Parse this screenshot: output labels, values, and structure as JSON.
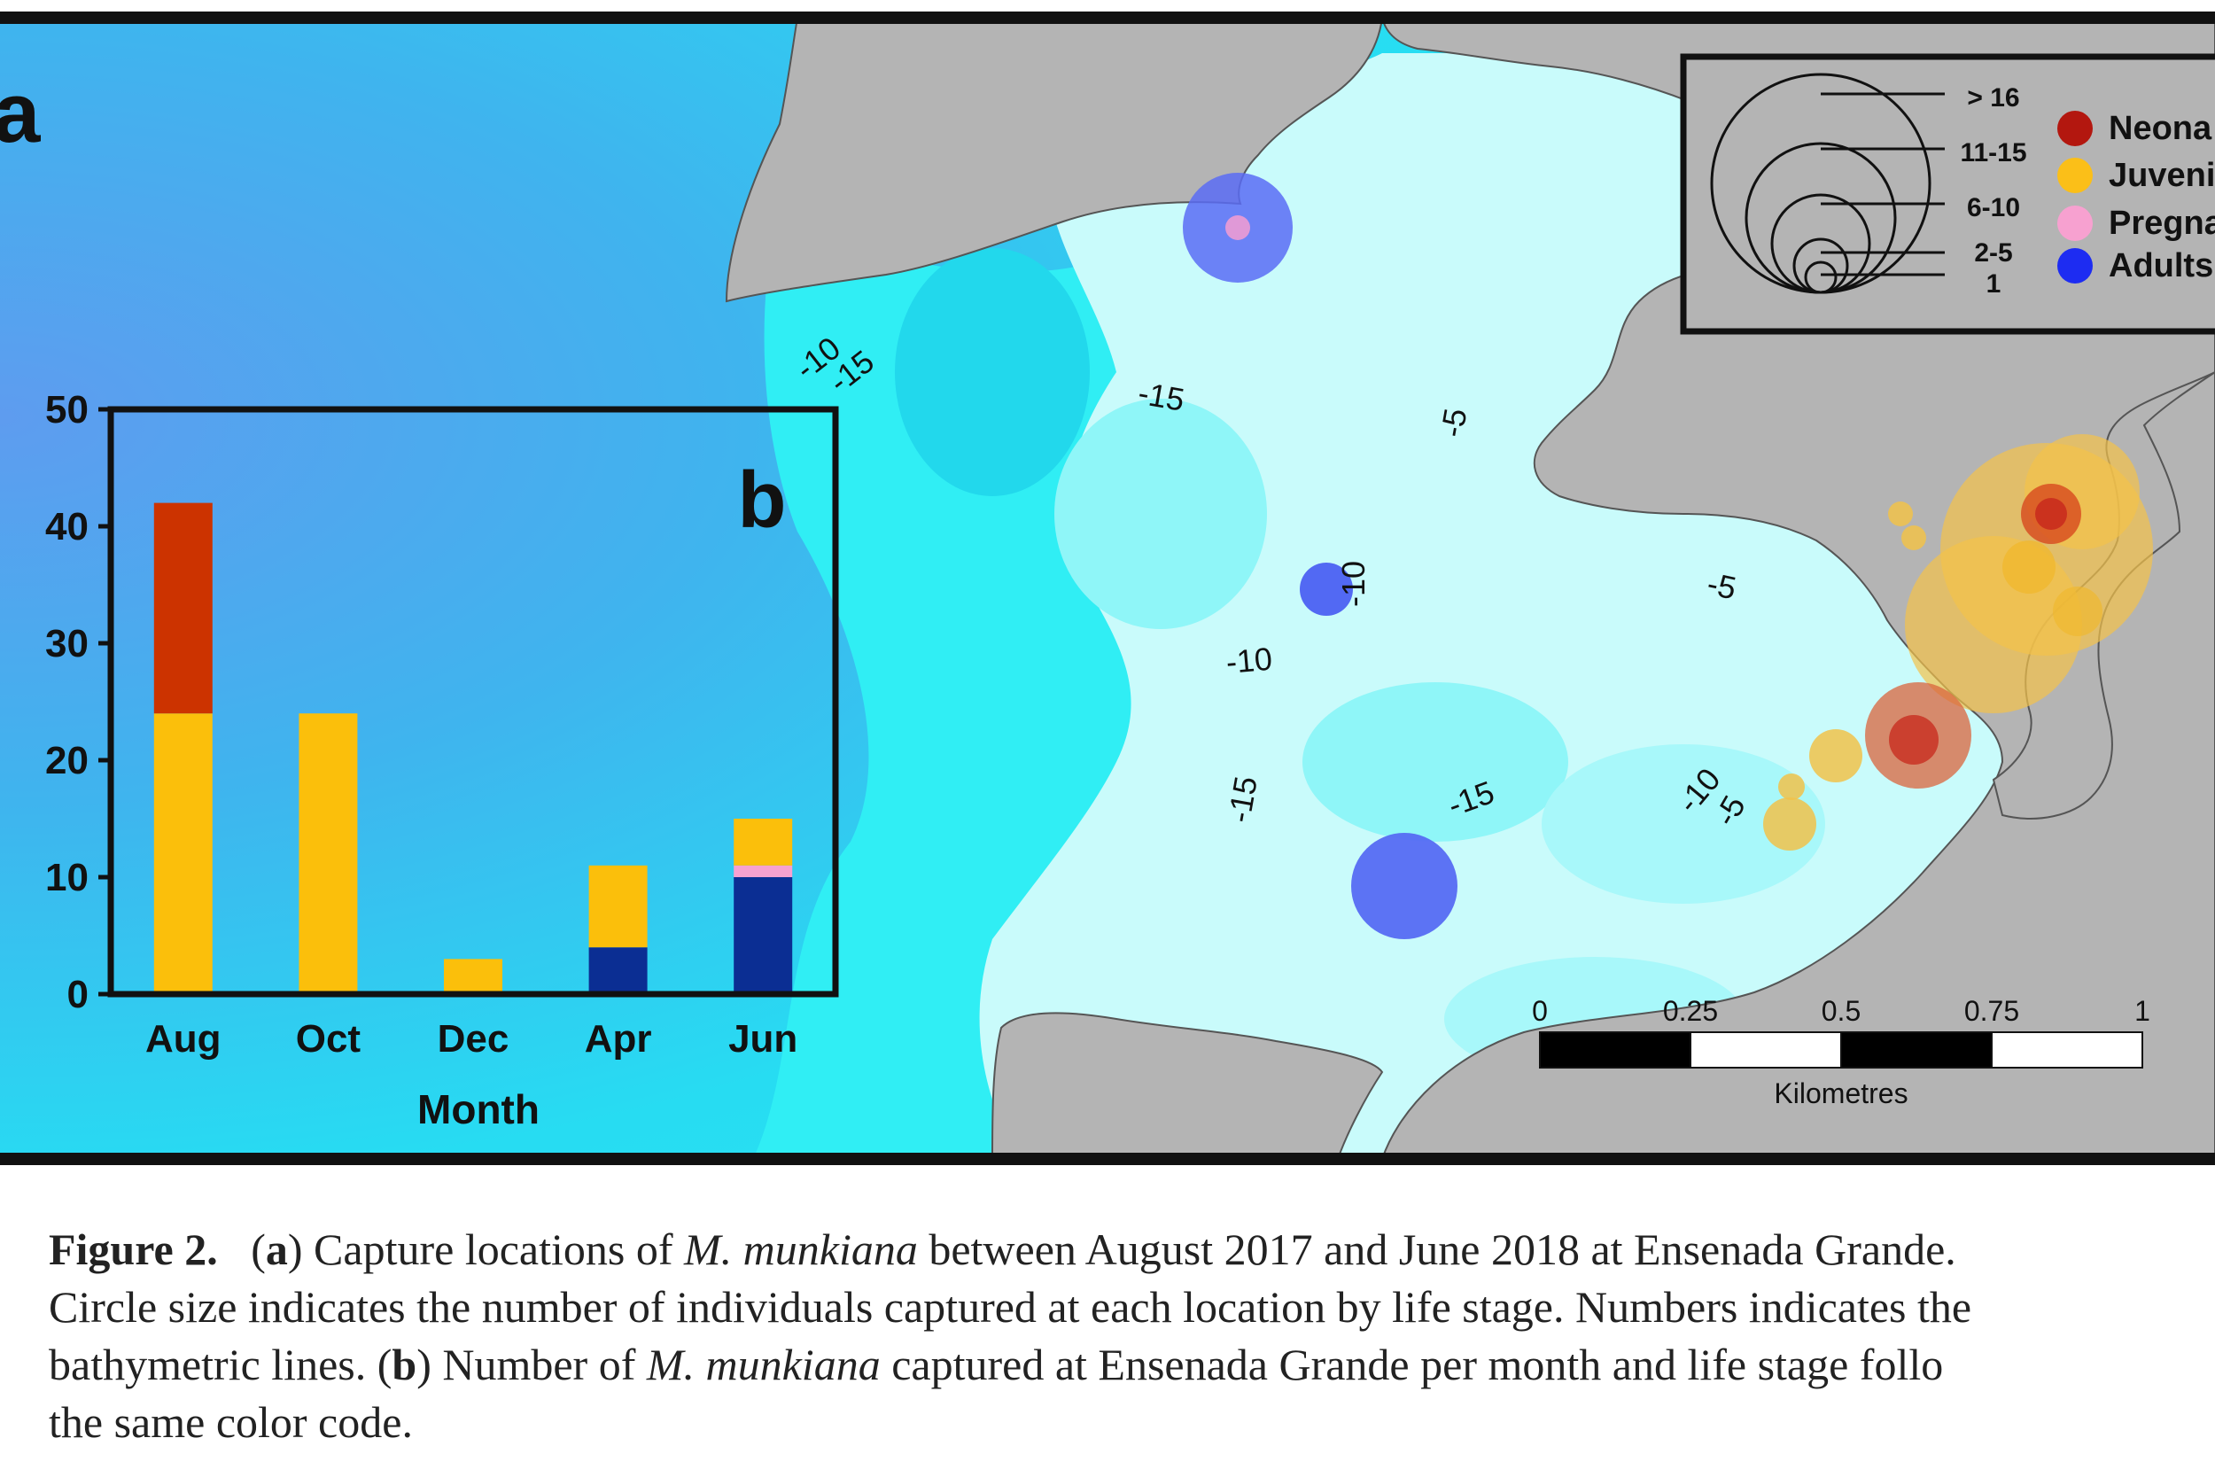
{
  "panel_a": {
    "label": "a",
    "contour_labels": [
      "-10",
      "-15",
      "-15",
      "-5",
      "-10",
      "-10",
      "-5",
      "-15",
      "-15",
      "-10",
      "-5"
    ],
    "legend": {
      "size_classes": [
        "> 16",
        "11-15",
        "6-10",
        "2-5",
        "1"
      ],
      "life_stages": [
        {
          "label": "Neona",
          "color": "#b3170f"
        },
        {
          "label": "Juveni",
          "color": "#fbbf18"
        },
        {
          "label": "Pregna",
          "color": "#f7a1d0"
        },
        {
          "label": "Adults",
          "color": "#1d2cf2"
        }
      ]
    },
    "scale_bar": {
      "ticks": [
        "0",
        "0.25",
        "0.5",
        "0.75",
        "1"
      ],
      "unit": "Kilometres"
    },
    "colors": {
      "land": "#b4b4b4",
      "deep_water": "#5aa2ee",
      "mid_water": "#2ce8f0",
      "shallow_water": "#c8fbfb"
    }
  },
  "chart_data": {
    "type": "bar",
    "stacked": true,
    "panel_label": "b",
    "categories": [
      "Aug",
      "Oct",
      "Dec",
      "Apr",
      "Jun"
    ],
    "series": [
      {
        "key": "adults",
        "color": "#0b2e93",
        "values": [
          0,
          0,
          0,
          4,
          10
        ]
      },
      {
        "key": "pregnant",
        "color": "#f7a1d0",
        "values": [
          0,
          0,
          0,
          0,
          1
        ]
      },
      {
        "key": "juveniles",
        "color": "#fbbf0b",
        "values": [
          24,
          24,
          3,
          7,
          4
        ]
      },
      {
        "key": "neonates",
        "color": "#cc3300",
        "values": [
          18,
          0,
          0,
          0,
          0
        ]
      }
    ],
    "xlabel": "Month",
    "ylabel": "",
    "ylim": [
      0,
      50
    ],
    "yticks": [
      0,
      10,
      20,
      30,
      40,
      50
    ]
  },
  "caption": {
    "label": "Figure 2.",
    "a_letter": "a",
    "b_letter": "b",
    "species": "M. munkiana",
    "line1_a": "Capture locations of",
    "line1_b": "between August 2017 and June 2018 at Ensenada Grande.",
    "line2": "Circle size indicates the number of individuals captured at each location by life stage. Numbers indicates the",
    "line3_a": "bathymetric lines. (",
    "line3_b": "Number of",
    "line3_c": "captured at Ensenada Grande per month and life stage follo",
    "line4": "the same color code."
  }
}
